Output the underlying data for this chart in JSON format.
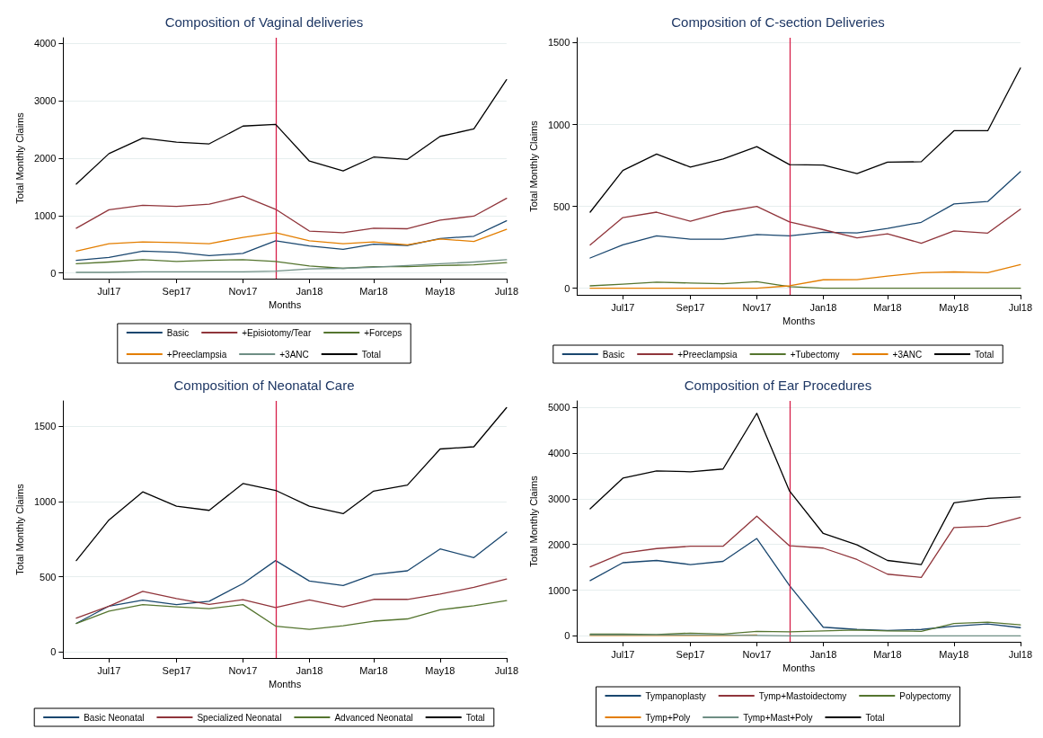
{
  "chart_data": [
    {
      "type": "line",
      "title": "Composition of Vaginal deliveries",
      "xlabel": "Months",
      "ylabel": "Total Monthly Claims",
      "x": [
        "2017-06",
        "2017-07",
        "2017-08",
        "2017-09",
        "2017-10",
        "2017-11",
        "2017-12",
        "2018-01",
        "2018-02",
        "2018-03",
        "2018-04",
        "2018-05",
        "2018-06",
        "2018-07"
      ],
      "xlim": [
        "2017-05-20",
        "2018-07"
      ],
      "xticks": [
        {
          "value": "2017-07",
          "label": "Jul17"
        },
        {
          "value": "2017-09",
          "label": "Sep17"
        },
        {
          "value": "2017-11",
          "label": "Nov17"
        },
        {
          "value": "2018-01",
          "label": "Jan18"
        },
        {
          "value": "2018-03",
          "label": "Mar18"
        },
        {
          "value": "2018-05",
          "label": "May18"
        },
        {
          "value": "2018-07",
          "label": "Jul18"
        }
      ],
      "ylim": [
        -100,
        4100
      ],
      "yticks": [
        0,
        1000,
        2000,
        3000,
        4000
      ],
      "grid": "y",
      "legend": "bottom",
      "marker": "none",
      "line_style": "solid",
      "ref_lines": [
        {
          "axis": "x",
          "value": "2017-12",
          "color": "#d6204a"
        }
      ],
      "series": [
        {
          "name": "Basic",
          "color": "#1a476f",
          "values": [
            220,
            270,
            380,
            360,
            300,
            340,
            560,
            470,
            410,
            500,
            480,
            600,
            640,
            910
          ]
        },
        {
          "name": "+Episiotomy/Tear",
          "color": "#90353b",
          "values": [
            780,
            1100,
            1180,
            1160,
            1200,
            1340,
            1110,
            730,
            700,
            780,
            770,
            920,
            990,
            1300
          ]
        },
        {
          "name": "+Forceps",
          "color": "#55752f",
          "values": [
            160,
            190,
            230,
            200,
            220,
            230,
            200,
            120,
            80,
            110,
            110,
            130,
            140,
            180
          ]
        },
        {
          "name": "+Preeclampsia",
          "color": "#e37e00",
          "values": [
            380,
            510,
            540,
            530,
            510,
            620,
            700,
            560,
            510,
            540,
            490,
            590,
            550,
            760
          ]
        },
        {
          "name": "+3ANC",
          "color": "#6e8e84",
          "values": [
            10,
            10,
            20,
            20,
            20,
            20,
            30,
            70,
            80,
            100,
            130,
            160,
            190,
            230
          ]
        },
        {
          "name": "Total",
          "color": "#000000",
          "values": [
            1550,
            2080,
            2350,
            2280,
            2250,
            2560,
            2590,
            1950,
            1780,
            2020,
            1980,
            2380,
            2510,
            3370
          ]
        }
      ]
    },
    {
      "type": "line",
      "title": "Composition of C-section Deliveries",
      "xlabel": "Months",
      "ylabel": "Total Monthly Claims",
      "x": [
        "2017-06",
        "2017-07",
        "2017-08",
        "2017-09",
        "2017-10",
        "2017-11",
        "2017-12",
        "2018-01",
        "2018-02",
        "2018-03",
        "2018-04",
        "2018-05",
        "2018-06",
        "2018-07"
      ],
      "xlim": [
        "2017-05-20",
        "2018-07"
      ],
      "xticks": [
        {
          "value": "2017-07",
          "label": "Jul17"
        },
        {
          "value": "2017-09",
          "label": "Sep17"
        },
        {
          "value": "2017-11",
          "label": "Nov17"
        },
        {
          "value": "2018-01",
          "label": "Jan18"
        },
        {
          "value": "2018-03",
          "label": "Mar18"
        },
        {
          "value": "2018-05",
          "label": "May18"
        },
        {
          "value": "2018-07",
          "label": "Jul18"
        }
      ],
      "ylim": [
        -40,
        1530
      ],
      "yticks": [
        0,
        500,
        1000,
        1500
      ],
      "grid": "y",
      "legend": "bottom",
      "marker": "none",
      "line_style": "solid",
      "ref_lines": [
        {
          "axis": "x",
          "value": "2017-12",
          "color": "#d6204a"
        }
      ],
      "series": [
        {
          "name": "Basic",
          "color": "#1a476f",
          "values": [
            185,
            265,
            320,
            300,
            300,
            328,
            320,
            342,
            338,
            365,
            403,
            515,
            530,
            712
          ]
        },
        {
          "name": "+Preeclampsia",
          "color": "#90353b",
          "values": [
            265,
            432,
            465,
            410,
            465,
            500,
            405,
            358,
            308,
            333,
            275,
            350,
            337,
            483
          ]
        },
        {
          "name": "+Tubectomy",
          "color": "#55752f",
          "values": [
            15,
            25,
            38,
            32,
            28,
            40,
            10,
            0,
            0,
            0,
            0,
            0,
            0,
            0
          ]
        },
        {
          "name": "+3ANC",
          "color": "#e37e00",
          "values": [
            0,
            0,
            0,
            0,
            0,
            0,
            15,
            52,
            53,
            75,
            95,
            100,
            95,
            145
          ]
        },
        {
          "name": "Total",
          "color": "#000000",
          "values": [
            465,
            720,
            820,
            740,
            790,
            865,
            755,
            752,
            700,
            770,
            773,
            962,
            962,
            1345
          ]
        }
      ]
    },
    {
      "type": "line",
      "title": "Composition of Neonatal Care",
      "xlabel": "Months",
      "ylabel": "Total Monthly Claims",
      "x": [
        "2017-06",
        "2017-07",
        "2017-08",
        "2017-09",
        "2017-10",
        "2017-11",
        "2017-12",
        "2018-01",
        "2018-02",
        "2018-03",
        "2018-04",
        "2018-05",
        "2018-06",
        "2018-07"
      ],
      "xlim": [
        "2017-05-20",
        "2018-07"
      ],
      "xticks": [
        {
          "value": "2017-07",
          "label": "Jul17"
        },
        {
          "value": "2017-09",
          "label": "Sep17"
        },
        {
          "value": "2017-11",
          "label": "Nov17"
        },
        {
          "value": "2018-01",
          "label": "Jan18"
        },
        {
          "value": "2018-03",
          "label": "Mar18"
        },
        {
          "value": "2018-05",
          "label": "May18"
        },
        {
          "value": "2018-07",
          "label": "Jul18"
        }
      ],
      "ylim": [
        -40,
        1670
      ],
      "yticks": [
        0,
        500,
        1000,
        1500
      ],
      "grid": "y",
      "legend": "bottom",
      "marker": "none",
      "line_style": "solid",
      "ref_lines": [
        {
          "axis": "x",
          "value": "2017-12",
          "color": "#d6204a"
        }
      ],
      "series": [
        {
          "name": "Basic Neonatal",
          "color": "#1a476f",
          "values": [
            190,
            305,
            345,
            315,
            337,
            455,
            608,
            472,
            442,
            515,
            540,
            685,
            628,
            797
          ]
        },
        {
          "name": "Specialized Neonatal",
          "color": "#90353b",
          "values": [
            225,
            305,
            403,
            355,
            317,
            348,
            295,
            347,
            300,
            350,
            350,
            385,
            430,
            485
          ]
        },
        {
          "name": "Advanced Neonatal",
          "color": "#55752f",
          "values": [
            190,
            272,
            315,
            300,
            288,
            315,
            172,
            150,
            175,
            205,
            220,
            280,
            308,
            342
          ]
        },
        {
          "name": "Total",
          "color": "#000000",
          "values": [
            608,
            878,
            1065,
            970,
            942,
            1120,
            1075,
            970,
            920,
            1070,
            1110,
            1350,
            1365,
            1625
          ]
        }
      ]
    },
    {
      "type": "line",
      "title": "Composition of Ear Procedures",
      "xlabel": "Months",
      "ylabel": "Total Monthly Claims",
      "x": [
        "2017-06",
        "2017-07",
        "2017-08",
        "2017-09",
        "2017-10",
        "2017-11",
        "2017-12",
        "2018-01",
        "2018-02",
        "2018-03",
        "2018-04",
        "2018-05",
        "2018-06",
        "2018-07"
      ],
      "xlim": [
        "2017-05-20",
        "2018-07"
      ],
      "xticks": [
        {
          "value": "2017-07",
          "label": "Jul17"
        },
        {
          "value": "2017-09",
          "label": "Sep17"
        },
        {
          "value": "2017-11",
          "label": "Nov17"
        },
        {
          "value": "2018-01",
          "label": "Jan18"
        },
        {
          "value": "2018-03",
          "label": "Mar18"
        },
        {
          "value": "2018-05",
          "label": "May18"
        },
        {
          "value": "2018-07",
          "label": "Jul18"
        }
      ],
      "ylim": [
        -130,
        5140
      ],
      "yticks": [
        0,
        1000,
        2000,
        3000,
        4000,
        5000
      ],
      "grid": "y",
      "legend": "bottom",
      "marker": "none",
      "line_style": "solid",
      "ref_lines": [
        {
          "axis": "x",
          "value": "2017-12",
          "color": "#d6204a"
        }
      ],
      "series": [
        {
          "name": "Tympanoplasty",
          "color": "#1a476f",
          "values": [
            1210,
            1600,
            1650,
            1560,
            1630,
            2130,
            1100,
            190,
            140,
            120,
            140,
            210,
            260,
            180
          ]
        },
        {
          "name": "Tymp+Mastoidectomy",
          "color": "#90353b",
          "values": [
            1510,
            1810,
            1910,
            1960,
            1960,
            2620,
            1970,
            1920,
            1670,
            1350,
            1280,
            2370,
            2400,
            2590
          ]
        },
        {
          "name": "Polypectomy",
          "color": "#55752f",
          "values": [
            40,
            40,
            30,
            60,
            40,
            100,
            90,
            110,
            130,
            110,
            100,
            270,
            300,
            240
          ]
        },
        {
          "name": "Tymp+Poly",
          "color": "#e37e00",
          "values": [
            10,
            10,
            10,
            10,
            10,
            20,
            null,
            null,
            null,
            null,
            null,
            null,
            null,
            null
          ]
        },
        {
          "name": "Tymp+Mast+Poly",
          "color": "#6e8e84",
          "values": [
            20,
            20,
            20,
            20,
            20,
            10,
            0,
            0,
            0,
            0,
            0,
            0,
            0,
            0
          ]
        },
        {
          "name": "Total",
          "color": "#000000",
          "values": [
            2780,
            3450,
            3610,
            3590,
            3650,
            4870,
            3170,
            2240,
            1990,
            1650,
            1560,
            2910,
            3010,
            3040
          ]
        }
      ]
    }
  ]
}
